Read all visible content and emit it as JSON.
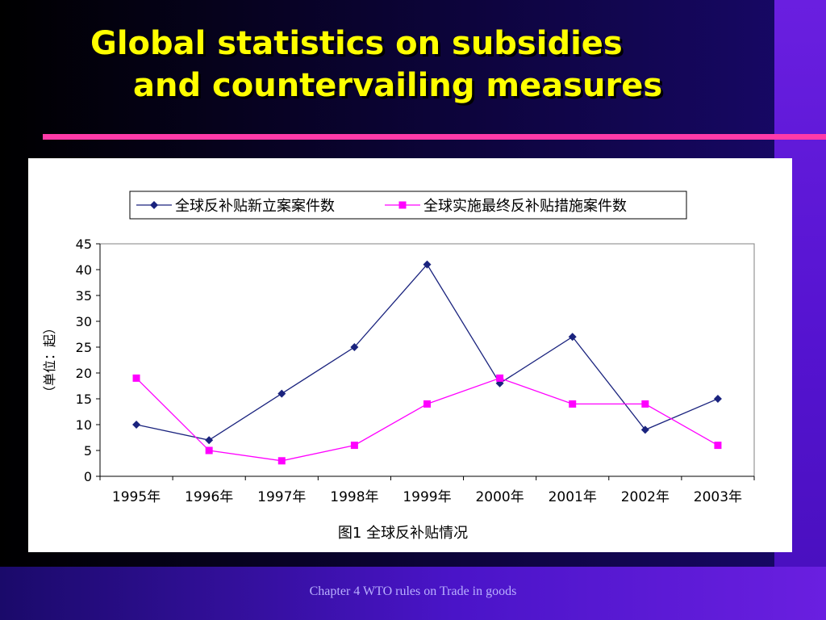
{
  "slide": {
    "title_line1": "Global statistics on subsidies",
    "title_line2": "and countervailing measures",
    "footer": "Chapter 4 WTO rules on Trade in goods"
  },
  "colors": {
    "title": "#ffff00",
    "divider": "#ff3aa8",
    "series1": "#1a237e",
    "series2": "#ff00ff"
  },
  "chart_data": {
    "type": "line",
    "title": "图1   全球反补贴情况",
    "xlabel": "",
    "ylabel": "（单位：起）",
    "categories": [
      "1995年",
      "1996年",
      "1997年",
      "1998年",
      "1999年",
      "2000年",
      "2001年",
      "2002年",
      "2003年"
    ],
    "ylim": [
      0,
      45
    ],
    "yticks": [
      0,
      5,
      10,
      15,
      20,
      25,
      30,
      35,
      40,
      45
    ],
    "grid": false,
    "legend": "top",
    "series": [
      {
        "name": "全球反补贴新立案案件数",
        "marker": "diamond",
        "values": [
          10,
          7,
          16,
          25,
          41,
          18,
          27,
          9,
          15
        ]
      },
      {
        "name": "全球实施最终反补贴措施案件数",
        "marker": "square",
        "values": [
          19,
          5,
          3,
          6,
          14,
          19,
          14,
          14,
          6
        ]
      }
    ]
  }
}
